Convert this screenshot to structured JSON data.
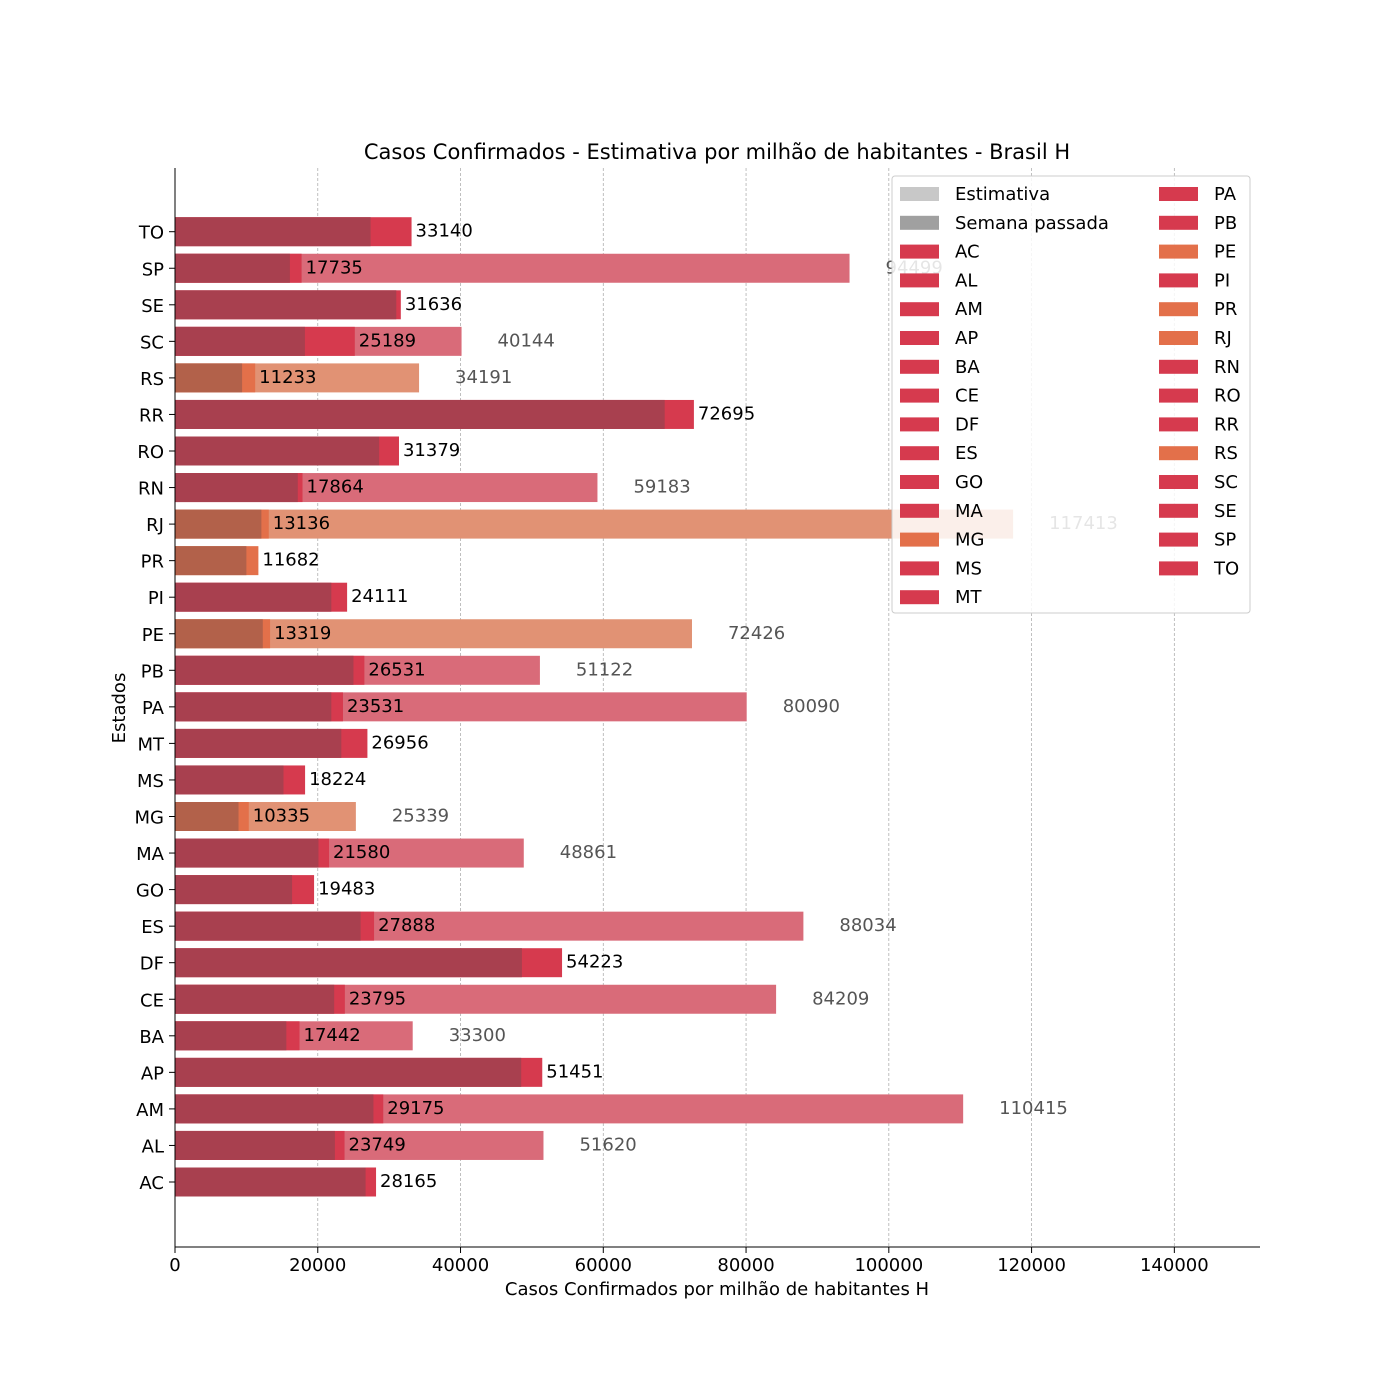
{
  "chart_data": {
    "type": "bar",
    "orientation": "horizontal",
    "title": "Casos Confirmados - Estimativa por milhão de habitantes - Brasil H",
    "xlabel": "Casos Confirmados por milhão de habitantes H",
    "ylabel": "Estados",
    "xlim": [
      0,
      152000
    ],
    "xticks": [
      0,
      20000,
      40000,
      60000,
      80000,
      100000,
      120000,
      140000
    ],
    "xtick_labels": [
      "0",
      "20000",
      "40000",
      "60000",
      "80000",
      "100000",
      "120000",
      "140000"
    ],
    "grid": "x-dashed",
    "legend_position": "top-right",
    "categories": [
      "AC",
      "AL",
      "AM",
      "AP",
      "BA",
      "CE",
      "DF",
      "ES",
      "GO",
      "MA",
      "MG",
      "MS",
      "MT",
      "PA",
      "PB",
      "PE",
      "PI",
      "PR",
      "RJ",
      "RN",
      "RO",
      "RR",
      "RS",
      "SC",
      "SE",
      "SP",
      "TO"
    ],
    "series": [
      {
        "name": "Estimativa",
        "values": [
          null,
          51620,
          110415,
          null,
          33300,
          84209,
          null,
          88034,
          null,
          48861,
          25339,
          null,
          null,
          80090,
          51122,
          72426,
          null,
          null,
          117413,
          59183,
          null,
          null,
          34191,
          40144,
          null,
          94499,
          null
        ]
      },
      {
        "name": "Semana passada",
        "values": [
          26700,
          22400,
          27800,
          48500,
          15600,
          22300,
          48600,
          26000,
          16400,
          20100,
          8900,
          15200,
          23300,
          21900,
          25000,
          12300,
          21900,
          10000,
          12100,
          17200,
          28600,
          68600,
          9400,
          18200,
          31000,
          16100,
          27400
        ]
      },
      {
        "name": "Casos confirmados",
        "values": [
          28165,
          23749,
          29175,
          51451,
          17442,
          23795,
          54223,
          27888,
          19483,
          21580,
          10335,
          18224,
          26956,
          23531,
          26531,
          13319,
          24111,
          11682,
          13136,
          17864,
          31379,
          72695,
          11233,
          25189,
          31636,
          17735,
          33140
        ]
      }
    ],
    "value_labels": {
      "current": [
        "28165",
        "23749",
        "29175",
        "51451",
        "17442",
        "23795",
        "54223",
        "27888",
        "19483",
        "21580",
        "10335",
        "18224",
        "26956",
        "23531",
        "26531",
        "13319",
        "24111",
        "11682",
        "13136",
        "17864",
        "31379",
        "72695",
        "11233",
        "25189",
        "31636",
        "17735",
        "33140"
      ],
      "estimate": [
        "",
        "51620",
        "110415",
        "",
        "33300",
        "84209",
        "",
        "88034",
        "",
        "48861",
        "25339",
        "",
        "",
        "80090",
        "51122",
        "72426",
        "",
        "",
        "117413",
        "59183",
        "",
        "",
        "34191",
        "40144",
        "",
        "94499",
        ""
      ]
    },
    "colors": {
      "red": "#d63a4e",
      "orange": "#e3704a",
      "red_estimate": "#d96b79",
      "orange_estimate": "#e19274",
      "red_last_week": "#a8404f",
      "orange_last_week": "#b2614a"
    },
    "state_color_group": {
      "MG": "orange",
      "PE": "orange",
      "PR": "orange",
      "RJ": "orange",
      "RS": "orange"
    },
    "legend": {
      "items": [
        "Estimativa",
        "Semana passada",
        "AC",
        "AL",
        "AM",
        "AP",
        "BA",
        "CE",
        "DF",
        "ES",
        "GO",
        "MA",
        "MG",
        "MS",
        "MT",
        "PA",
        "PB",
        "PE",
        "PI",
        "PR",
        "RJ",
        "RN",
        "RO",
        "RR",
        "RS",
        "SC",
        "SE",
        "SP",
        "TO"
      ],
      "swatch_colors": [
        "#c8c8c8",
        "#a0a0a0",
        "#d63a4e",
        "#d63a4e",
        "#d63a4e",
        "#d63a4e",
        "#d63a4e",
        "#d63a4e",
        "#d63a4e",
        "#d63a4e",
        "#d63a4e",
        "#d63a4e",
        "#e3704a",
        "#d63a4e",
        "#d63a4e",
        "#d63a4e",
        "#d63a4e",
        "#e3704a",
        "#d63a4e",
        "#e3704a",
        "#e3704a",
        "#d63a4e",
        "#d63a4e",
        "#d63a4e",
        "#e3704a",
        "#d63a4e",
        "#d63a4e",
        "#d63a4e",
        "#d63a4e"
      ]
    }
  }
}
